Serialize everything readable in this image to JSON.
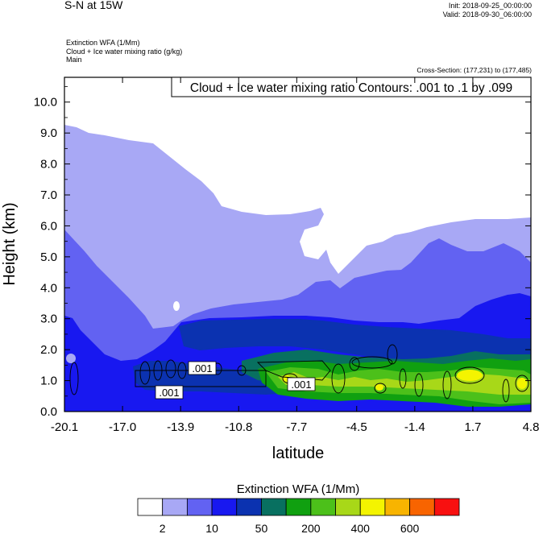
{
  "header": {
    "title": "S-N at 15W",
    "init": "Init: 2018-09-25_00:00:00",
    "valid": "Valid: 2018-09-30_06:00:00",
    "var1": "Extinction WFA   (1/Mm)",
    "var2": "Cloud + Ice water mixing ratio   (g/kg)",
    "var3": "Main",
    "cross_section": "Cross-Section: (177,231) to (177,485)"
  },
  "chart_data": {
    "type": "heatmap",
    "contour_label": "Cloud + Ice water mixing ratio Contours: .001 to .1 by .099",
    "xlabel": "latitude",
    "ylabel": "Height (km)",
    "xlim": [
      -20.1,
      4.8
    ],
    "ylim": [
      0.0,
      10.8
    ],
    "x_ticks": [
      "-20.1",
      "-17.0",
      "-13.9",
      "-10.8",
      "-7.7",
      "-4.5",
      "-1.4",
      "1.7",
      "4.8"
    ],
    "y_ticks": [
      "0.0",
      "1.0",
      "2.0",
      "3.0",
      "4.0",
      "5.0",
      "6.0",
      "7.0",
      "8.0",
      "9.0",
      "10.0"
    ],
    "contour_labels": [
      ".001",
      ".001",
      ".001"
    ],
    "colorbar": {
      "title": "Extinction WFA  (1/Mm)",
      "colors": [
        "#ffffff",
        "#a8a8f5",
        "#6262f2",
        "#1818f0",
        "#0b32b0",
        "#087060",
        "#10a010",
        "#4cc01a",
        "#a8d818",
        "#f4f400",
        "#f8b400",
        "#f86400",
        "#f81010"
      ],
      "labels": [
        "2",
        "10",
        "50",
        "200",
        "400",
        "600"
      ]
    }
  }
}
